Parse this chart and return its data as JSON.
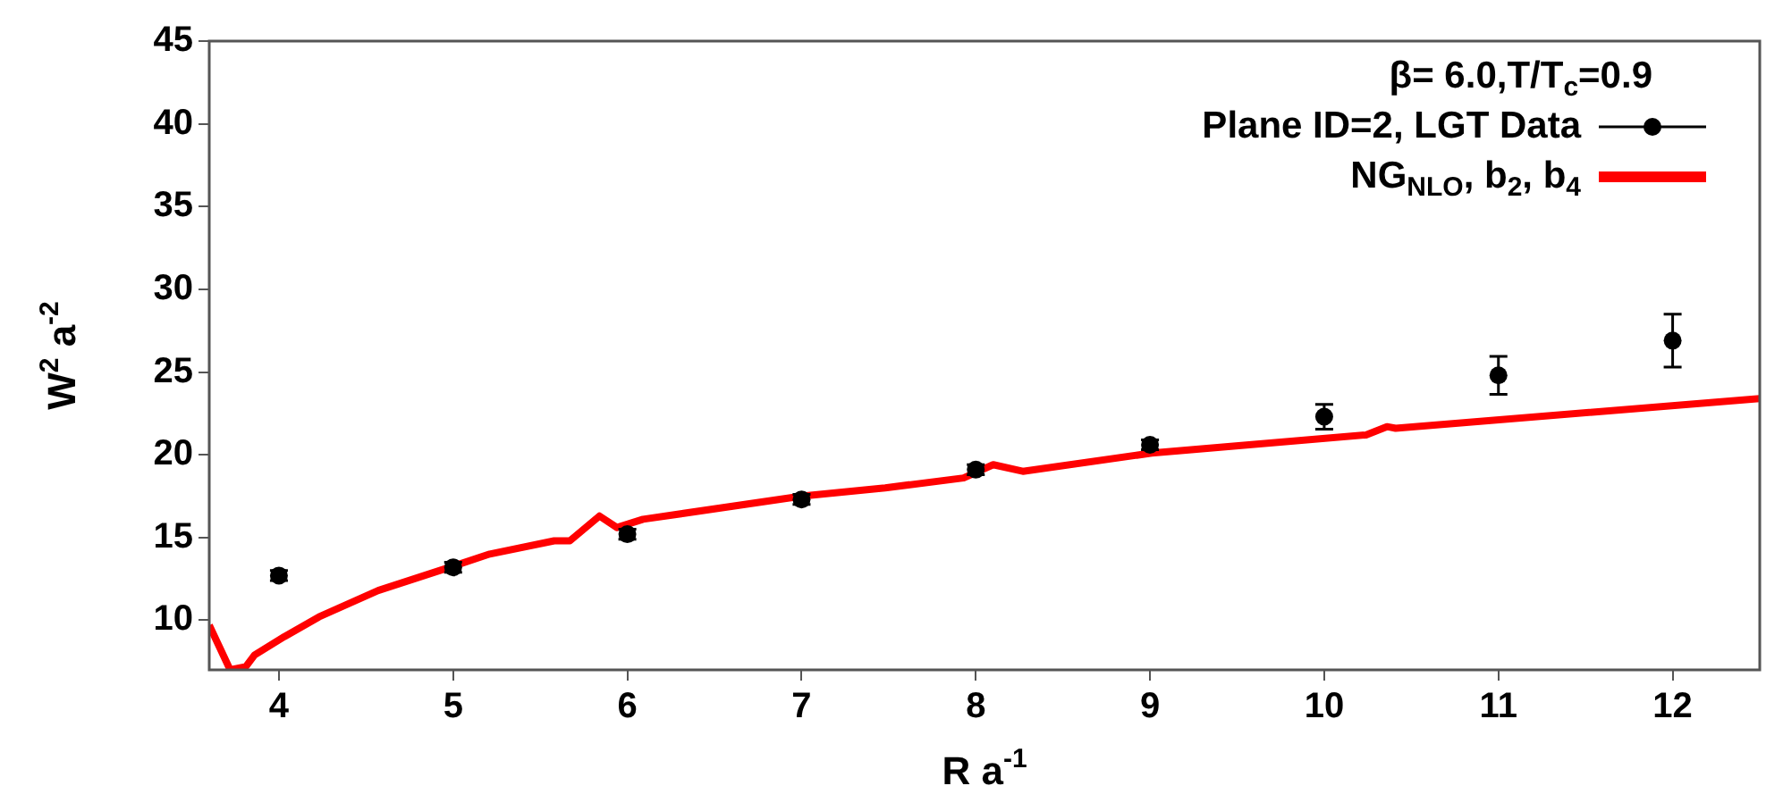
{
  "chart_data": {
    "type": "line",
    "xlabel": "R a$^{-1}$",
    "ylabel": "W$^{2}$ a$^{-2}$",
    "legend_title": "β= 6.0,T/T$_{c}$=0.9",
    "xlim": [
      3.6,
      12.5
    ],
    "ylim": [
      7,
      45
    ],
    "xticks": [
      4,
      5,
      6,
      7,
      8,
      9,
      10,
      11,
      12
    ],
    "yticks": [
      10,
      15,
      20,
      25,
      30,
      35,
      40,
      45
    ],
    "grid": false,
    "legend": "top right",
    "series": [
      {
        "name": "Plane ID=2, LGT Data",
        "type": "scatter",
        "color": "#000000",
        "marker": "circle",
        "x": [
          4,
          5,
          6,
          7,
          8,
          9,
          10,
          11,
          12
        ],
        "values": [
          12.7,
          13.2,
          15.2,
          17.3,
          19.1,
          20.6,
          22.3,
          24.8,
          26.9
        ],
        "errors": [
          0.3,
          0.3,
          0.3,
          0.3,
          0.3,
          0.3,
          0.75,
          1.15,
          1.6
        ]
      },
      {
        "name": "NG$_{NLO}$, b$_{2}$, b$_{4}$",
        "type": "line",
        "color": "#ff0000",
        "marker": "none",
        "line_style": "solid",
        "x": [
          3.6,
          3.72,
          3.81,
          3.86,
          4.03,
          4.23,
          4.57,
          4.98,
          5.21,
          5.58,
          5.67,
          5.84,
          5.94,
          6.09,
          7.0,
          7.48,
          7.93,
          8.1,
          8.27,
          9.01,
          10.24,
          10.36,
          10.41,
          12.5
        ],
        "values": [
          9.7,
          7.0,
          7.2,
          7.9,
          9.0,
          10.2,
          11.8,
          13.2,
          14.0,
          14.8,
          14.8,
          16.3,
          15.6,
          16.1,
          17.5,
          18.0,
          18.6,
          19.4,
          19.0,
          20.1,
          21.2,
          21.7,
          21.6,
          23.4
        ]
      }
    ]
  }
}
